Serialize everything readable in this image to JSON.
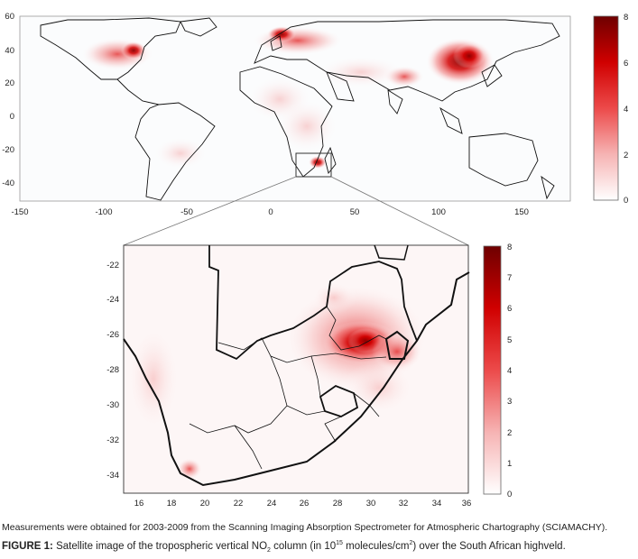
{
  "world_map": {
    "x_ticks": [
      "-150",
      "-100",
      "-50",
      "0",
      "50",
      "100",
      "150"
    ],
    "y_ticks": [
      "60",
      "40",
      "20",
      "0",
      "-20",
      "-40"
    ],
    "colorbar_ticks": [
      "8",
      "6",
      "4",
      "2",
      "0"
    ]
  },
  "zoom_map": {
    "x_ticks": [
      "16",
      "18",
      "20",
      "22",
      "24",
      "26",
      "28",
      "30",
      "32",
      "34",
      "36"
    ],
    "y_ticks": [
      "-22",
      "-24",
      "-26",
      "-28",
      "-30",
      "-32",
      "-34"
    ],
    "colorbar_ticks": [
      "8",
      "7",
      "6",
      "5",
      "4",
      "3",
      "2",
      "1",
      "0"
    ]
  },
  "colors": {
    "low": "#ffffff",
    "high": "#7a0000",
    "accent": "#e00000"
  },
  "note": "Measurements were obtained for 2003-2009 from the Scanning Imaging Absorption Spectrometer for Atmospheric Chartography (SCIAMACHY).",
  "caption": {
    "lead": "FIGURE 1:",
    "part1": " Satellite image of the tropospheric vertical NO",
    "sub": "2",
    "part2": " column (in 10",
    "sup": "15",
    "part3": " molecules/cm",
    "sup2": "2",
    "part4": ") over the South African highveld."
  }
}
